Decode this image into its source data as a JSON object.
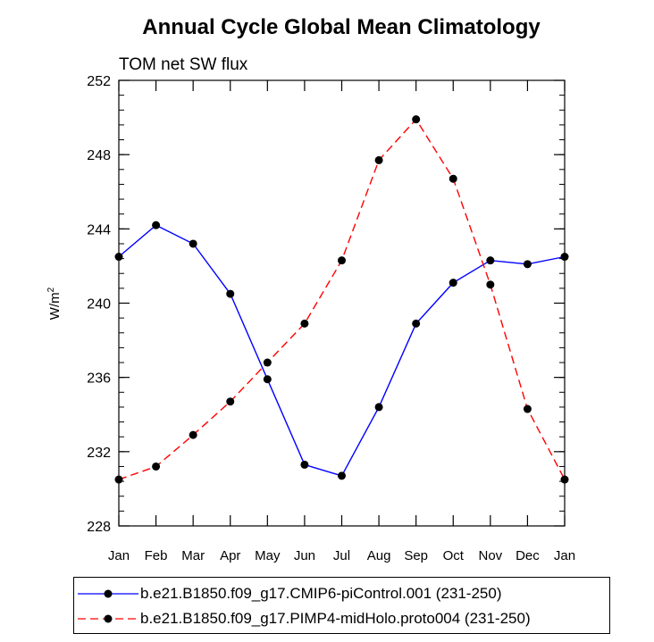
{
  "chart_data": {
    "type": "line",
    "title": "Annual Cycle Global Mean Climatology",
    "subtitle": "TOM net SW flux",
    "ylabel_base": "W/m",
    "ylabel_sup": "2",
    "xlabel": "",
    "categories": [
      "Jan",
      "Feb",
      "Mar",
      "Apr",
      "May",
      "Jun",
      "Jul",
      "Aug",
      "Sep",
      "Oct",
      "Nov",
      "Dec",
      "Jan"
    ],
    "ylim": [
      228,
      252
    ],
    "yticks": [
      228,
      232,
      236,
      240,
      244,
      248,
      252
    ],
    "yticks_minor_step": 0.8,
    "series": [
      {
        "name": "b.e21.B1850.f09_g17.CMIP6-piControl.001 (231-250)",
        "color": "#0000ff",
        "dash": "solid",
        "values": [
          242.5,
          244.2,
          243.2,
          240.5,
          235.9,
          231.3,
          230.7,
          234.4,
          238.9,
          241.1,
          242.3,
          242.1,
          242.5
        ]
      },
      {
        "name": "b.e21.B1850.f09_g17.PIMP4-midHolo.proto004 (231-250)",
        "color": "#ff0000",
        "dash": "dashed",
        "values": [
          230.5,
          231.2,
          232.9,
          234.7,
          236.8,
          238.9,
          242.3,
          247.7,
          249.9,
          246.7,
          241.0,
          234.3,
          230.5
        ]
      }
    ]
  }
}
